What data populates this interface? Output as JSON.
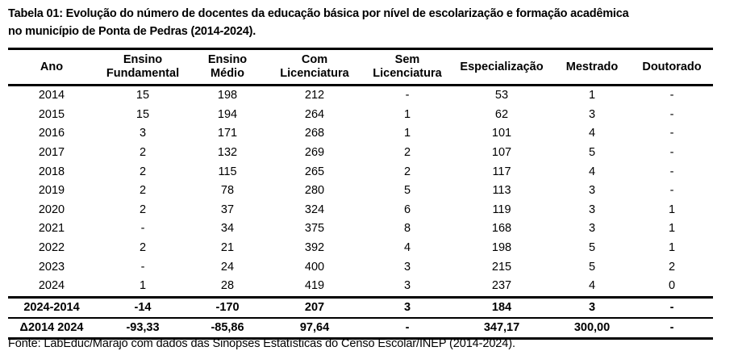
{
  "caption": {
    "line1": "Tabela 01: Evolução do número de docentes da educação básica por nível de escolarização e formação acadêmica",
    "line2": "no município de Ponta de Pedras (2014-2024)."
  },
  "table": {
    "headers": [
      {
        "line1": "Ano",
        "line2": ""
      },
      {
        "line1": "Ensino",
        "line2": "Fundamental"
      },
      {
        "line1": "Ensino",
        "line2": "Médio"
      },
      {
        "line1": "Com",
        "line2": "Licenciatura"
      },
      {
        "line1": "Sem",
        "line2": "Licenciatura"
      },
      {
        "line1": "Especialização",
        "line2": ""
      },
      {
        "line1": "Mestrado",
        "line2": ""
      },
      {
        "line1": "Doutorado",
        "line2": ""
      }
    ],
    "rows": [
      [
        "2014",
        "15",
        "198",
        "212",
        "-",
        "53",
        "1",
        "-"
      ],
      [
        "2015",
        "15",
        "194",
        "264",
        "1",
        "62",
        "3",
        "-"
      ],
      [
        "2016",
        "3",
        "171",
        "268",
        "1",
        "101",
        "4",
        "-"
      ],
      [
        "2017",
        "2",
        "132",
        "269",
        "2",
        "107",
        "5",
        "-"
      ],
      [
        "2018",
        "2",
        "115",
        "265",
        "2",
        "117",
        "4",
        "-"
      ],
      [
        "2019",
        "2",
        "78",
        "280",
        "5",
        "113",
        "3",
        "-"
      ],
      [
        "2020",
        "2",
        "37",
        "324",
        "6",
        "119",
        "3",
        "1"
      ],
      [
        "2021",
        "-",
        "34",
        "375",
        "8",
        "168",
        "3",
        "1"
      ],
      [
        "2022",
        "2",
        "21",
        "392",
        "4",
        "198",
        "5",
        "1"
      ],
      [
        "2023",
        "-",
        "24",
        "400",
        "3",
        "215",
        "5",
        "2"
      ],
      [
        "2024",
        "1",
        "28",
        "419",
        "3",
        "237",
        "4",
        "0"
      ]
    ],
    "summary": [
      [
        "2024-2014",
        "-14",
        "-170",
        "207",
        "3",
        "184",
        "3",
        "-"
      ],
      [
        "Δ2014 2024",
        "-93,33",
        "-85,86",
        "97,64",
        "-",
        "347,17",
        "300,00",
        "-"
      ]
    ]
  },
  "footer": {
    "source": "Fonte: LabEduc/Marajó com dados das Sinopses Estatísticas do Censo Escolar/INEP (2014-2024)."
  }
}
